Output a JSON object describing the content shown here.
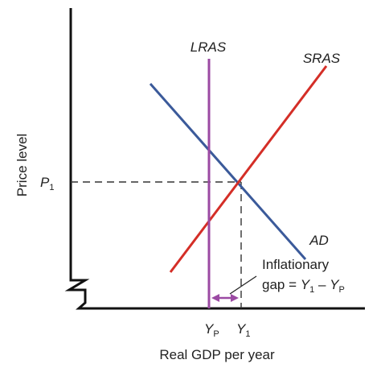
{
  "axes": {
    "x_title": "Real GDP per year",
    "y_title": "Price level"
  },
  "curves": {
    "lras": {
      "label": "LRAS",
      "color": "#9b4aa3"
    },
    "sras": {
      "label": "SRAS",
      "color": "#d42e27"
    },
    "ad": {
      "label": "AD",
      "color": "#3b5a9a"
    }
  },
  "y_tick": {
    "symbol": "P",
    "subscript": "1"
  },
  "x_ticks": [
    {
      "symbol": "Y",
      "subscript": "P"
    },
    {
      "symbol": "Y",
      "subscript": "1"
    }
  ],
  "annotation": {
    "line1": "Inflationary",
    "line2": "gap = ",
    "y1_symbol": "Y",
    "y1_subscript": "1",
    "minus": " – ",
    "yp_symbol": "Y",
    "yp_subscript": "P"
  },
  "colors": {
    "axis": "#111111",
    "guide": "#333333",
    "gap_arrow": "#9b4aa3"
  }
}
